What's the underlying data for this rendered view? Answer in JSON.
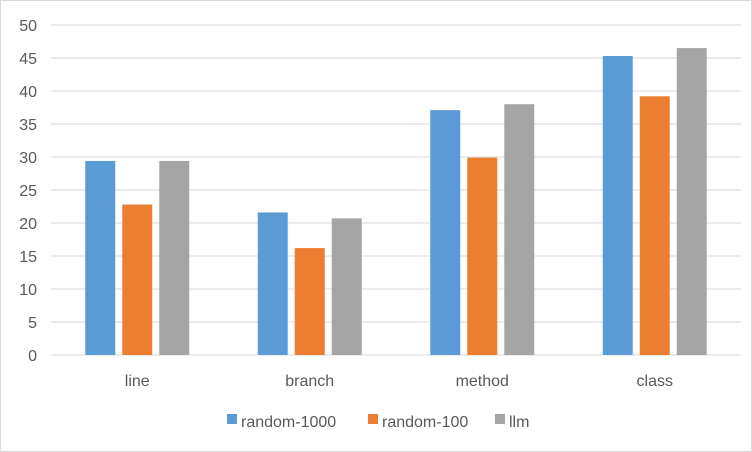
{
  "chart_data": {
    "type": "bar",
    "title": "",
    "xlabel": "",
    "ylabel": "",
    "categories": [
      "line",
      "branch",
      "method",
      "class"
    ],
    "series": [
      {
        "name": "random-1000",
        "color": "#5b9bd5",
        "values": [
          29.4,
          21.6,
          37.1,
          45.3
        ]
      },
      {
        "name": "random-100",
        "color": "#ed7d31",
        "values": [
          22.8,
          16.2,
          29.9,
          39.2
        ]
      },
      {
        "name": "llm",
        "color": "#a5a5a5",
        "values": [
          29.4,
          20.7,
          38.0,
          46.5
        ]
      }
    ],
    "ylim": [
      0,
      50
    ],
    "yticks": [
      "0",
      "5",
      "10",
      "15",
      "20",
      "25",
      "30",
      "35",
      "40",
      "45",
      "50"
    ],
    "grid": true,
    "legend_position": "bottom"
  }
}
